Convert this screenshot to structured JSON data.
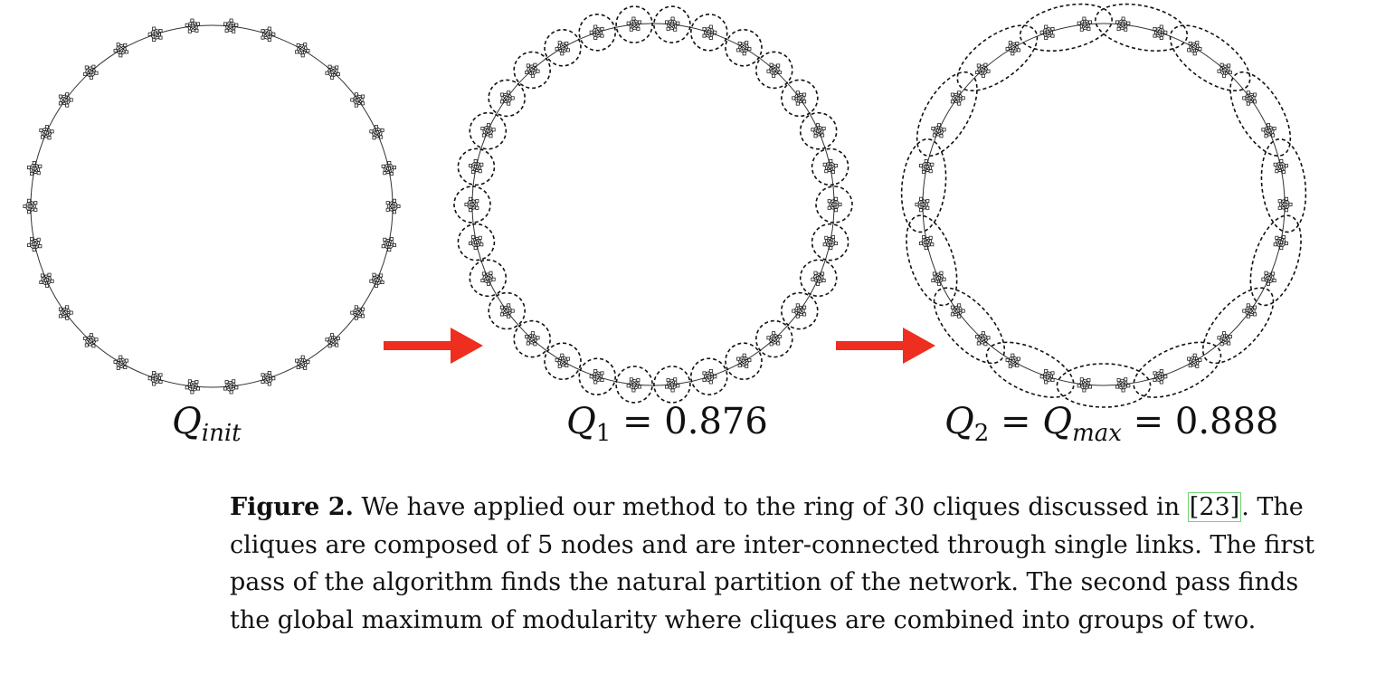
{
  "figure": {
    "ring_cliques": 30,
    "clique_size": 5,
    "panels": [
      {
        "id": "init",
        "groups_per_ring": 0,
        "label_main": "Q",
        "label_sub": "init",
        "label_rest": ""
      },
      {
        "id": "q1",
        "groups_per_ring": 30,
        "label_main": "Q",
        "label_sub": "1",
        "label_rest": " = 0.876"
      },
      {
        "id": "q2",
        "groups_per_ring": 15,
        "label_main": "Q",
        "label_sub": "2",
        "label_eq": " = ",
        "label_main2": "Q",
        "label_sub2": "max",
        "label_rest": " = 0.888"
      }
    ],
    "colors": {
      "arrow": "#ee2e1e",
      "line": "#333333",
      "ellipse": "#111111"
    }
  },
  "caption": {
    "label": "Figure 2.",
    "line1_a": " We have applied our method to the ring of 30 cliques discussed in ",
    "cite": "[23]",
    "line1_b": ". The",
    "line2": "cliques are composed of 5 nodes and are inter-connected through single links. The first",
    "line3": "pass of the algorithm finds the natural partition of the network. The second pass finds",
    "line4": "the global maximum of modularity where cliques are combined into groups of two."
  }
}
